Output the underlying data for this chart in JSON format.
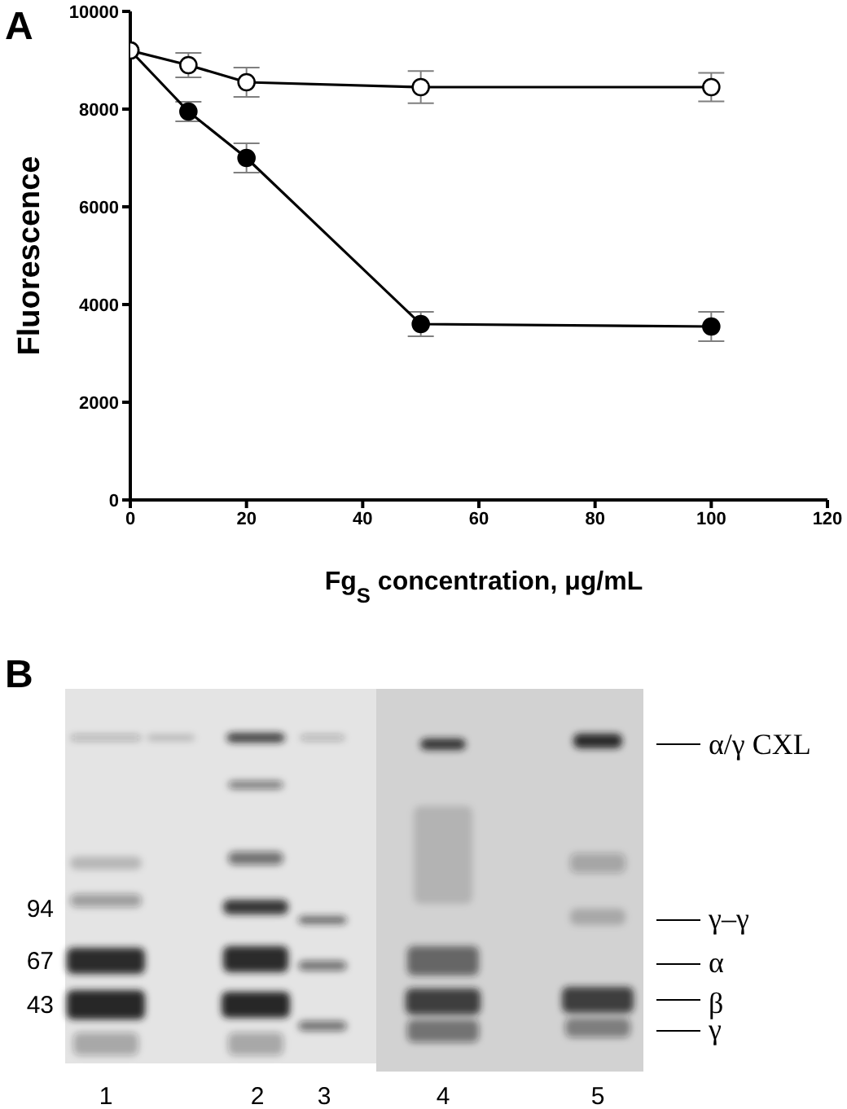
{
  "chart_data": [
    {
      "type": "line",
      "annotations": [
        "A"
      ],
      "ylabel": "Fluorescence",
      "xlabel": "Fg$_{S}$ concentration, μg/mL",
      "x": [
        0,
        10,
        20,
        50,
        100
      ],
      "series": [
        {
          "color": "#000000",
          "colors": [
            "#000000",
            "#000000",
            "#000000",
            "#000000",
            "#000000"
          ],
          "values": [
            9200,
            7950,
            7000,
            3600,
            3550
          ],
          "errors": [
            null,
            200,
            300,
            250,
            300
          ]
        },
        {
          "color": "#000000",
          "colors": [
            "#ffffff",
            "#ffffff",
            "#ffffff",
            "#ffffff",
            "#ffffff"
          ],
          "values": [
            9200,
            8900,
            8550,
            8450,
            8450
          ],
          "errors": [
            null,
            250,
            300,
            330,
            290
          ]
        }
      ],
      "xlim": [
        0,
        120
      ],
      "xticks": [
        0,
        20,
        40,
        60,
        80,
        100,
        120
      ],
      "ylim": [
        0,
        10000
      ],
      "yticks": [
        0,
        2000,
        4000,
        6000,
        8000,
        10000
      ],
      "marker": "circle",
      "line_style": "solid"
    },
    {
      "type": "other",
      "annotations": [
        "B",
        "94",
        "67",
        "43",
        "α/γ CXL",
        "γ–γ",
        "α",
        "β",
        "γ",
        "1",
        "2",
        "3",
        "4",
        "5"
      ]
    }
  ]
}
